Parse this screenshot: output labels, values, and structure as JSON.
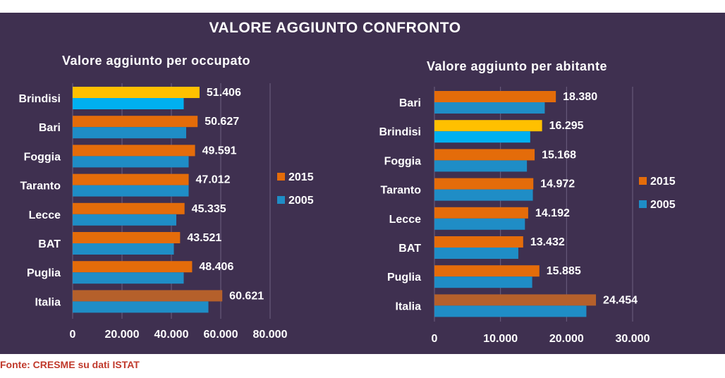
{
  "title": "VALORE AGGIUNTO CONFRONTO",
  "source": "Fonte: CRESME su dati ISTAT",
  "colors": {
    "bar_2015": "#e46c0a",
    "bar_2005": "#1f8dc6",
    "highlight_2015": "#ffc000",
    "highlight_2005": "#00b0f0",
    "italia_2015": "#b5602b",
    "background": "#3f3050"
  },
  "chart_data": [
    {
      "type": "bar",
      "orientation": "horizontal",
      "title": "Valore aggiunto per occupato",
      "categories": [
        "Brindisi",
        "Bari",
        "Foggia",
        "Taranto",
        "Lecce",
        "BAT",
        "Puglia",
        "Italia"
      ],
      "series": [
        {
          "name": "2015",
          "values": [
            51406,
            50627,
            49591,
            47012,
            45335,
            43521,
            48406,
            60621
          ]
        },
        {
          "name": "2005",
          "values": [
            45000,
            46000,
            47000,
            47000,
            42000,
            41000,
            45000,
            55000
          ]
        }
      ],
      "value_labels": [
        "51.406",
        "50.627",
        "49.591",
        "47.012",
        "45.335",
        "43.521",
        "48.406",
        "60.621"
      ],
      "xlim": [
        0,
        80000
      ],
      "xticks": [
        0,
        20000,
        40000,
        60000,
        80000
      ],
      "xtick_labels": [
        "0",
        "20.000",
        "40.000",
        "60.000",
        "80.000"
      ],
      "highlight": "Brindisi",
      "grid": true,
      "legend": "right"
    },
    {
      "type": "bar",
      "orientation": "horizontal",
      "title": "Valore aggiunto per abitante",
      "categories": [
        "Bari",
        "Brindisi",
        "Foggia",
        "Taranto",
        "Lecce",
        "BAT",
        "Puglia",
        "Italia"
      ],
      "series": [
        {
          "name": "2015",
          "values": [
            18380,
            16295,
            15168,
            14972,
            14192,
            13432,
            15885,
            24454
          ]
        },
        {
          "name": "2005",
          "values": [
            16700,
            14500,
            14000,
            14900,
            13700,
            12700,
            14800,
            23000
          ]
        }
      ],
      "value_labels": [
        "18.380",
        "16.295",
        "15.168",
        "14.972",
        "14.192",
        "13.432",
        "15.885",
        "24.454"
      ],
      "xlim": [
        0,
        30000
      ],
      "xticks": [
        0,
        10000,
        20000,
        30000
      ],
      "xtick_labels": [
        "0",
        "10.000",
        "20.000",
        "30.000"
      ],
      "highlight": "Brindisi",
      "grid": true,
      "legend": "right"
    }
  ]
}
